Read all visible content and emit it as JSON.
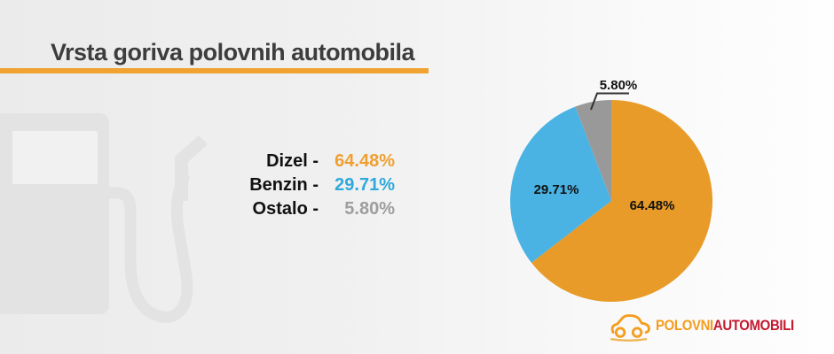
{
  "header": {
    "title": "Vrsta goriva polovnih automobila"
  },
  "legend": {
    "items": [
      {
        "label": "Dizel -",
        "value": "64.48%",
        "color": "#efa030"
      },
      {
        "label": "Benzin -",
        "value": "29.71%",
        "color": "#2fa9dc"
      },
      {
        "label": "Ostalo -",
        "value": "5.80%",
        "color": "#9e9e9e"
      }
    ]
  },
  "chart_data": {
    "type": "pie",
    "title": "Vrsta goriva polovnih automobila",
    "categories": [
      "Dizel",
      "Benzin",
      "Ostalo"
    ],
    "values": [
      64.48,
      29.71,
      5.8
    ],
    "labels": [
      "64.48%",
      "29.71%",
      "5.80%"
    ],
    "colors": [
      "#e89b28",
      "#4ab3e4",
      "#999999"
    ],
    "start_angle": "top",
    "direction": "clockwise",
    "label_placement": [
      "inside",
      "inside",
      "outside-callout"
    ],
    "legend_position": "left-of-chart"
  },
  "watermark": {
    "icon": "fuel-pump-icon"
  },
  "logo": {
    "icon": "car-outline-icon",
    "text_primary": "POLOVNI",
    "text_secondary": "AUTOMOBILI",
    "color_primary": "#f49d1e",
    "color_secondary": "#c41a30"
  },
  "colors": {
    "background_left": "#ebebeb",
    "background_right": "#fefefe",
    "title_text": "#3d3d3d",
    "title_underline": "#f0a330",
    "legend_label": "#111111",
    "pie_label": "#111111",
    "callout_line": "#333333",
    "watermark_gray": "#e3e3e3"
  }
}
